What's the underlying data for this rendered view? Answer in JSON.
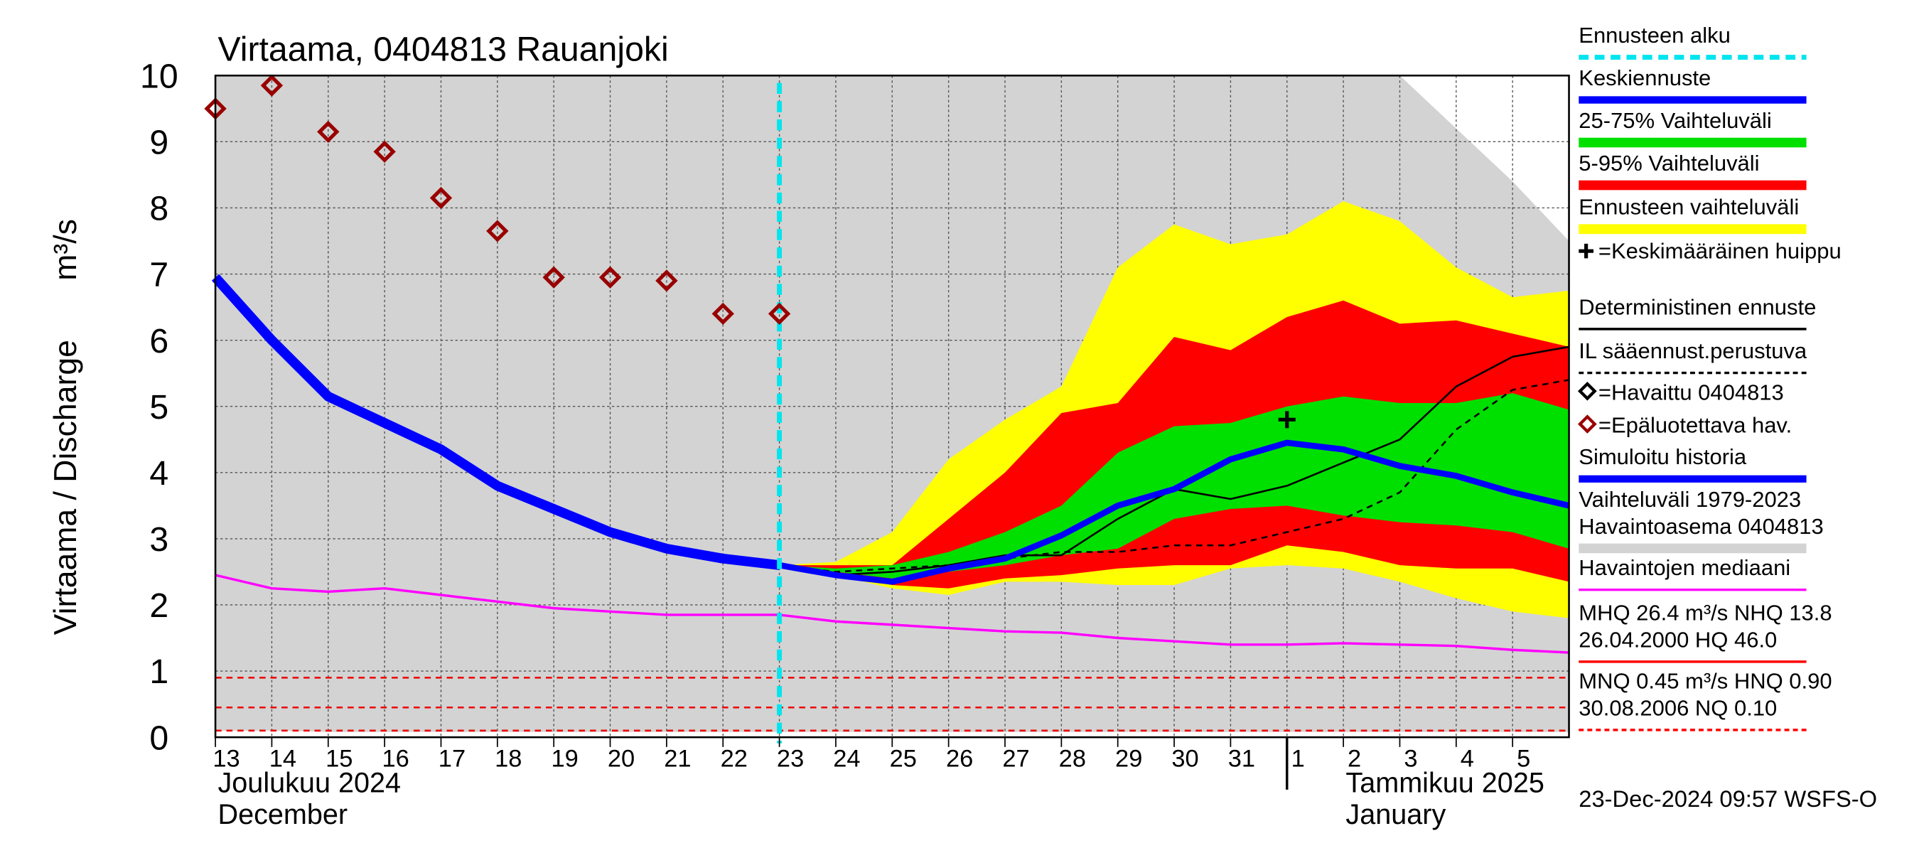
{
  "chart_data": {
    "type": "line",
    "title": "Virtaama, 0404813 Rauanjoki",
    "y_label": "Virtaama / Discharge",
    "y_unit": "m³/s",
    "x": [
      "2024-12-13",
      "2024-12-14",
      "2024-12-15",
      "2024-12-16",
      "2024-12-17",
      "2024-12-18",
      "2024-12-19",
      "2024-12-20",
      "2024-12-21",
      "2024-12-22",
      "2024-12-23",
      "2024-12-24",
      "2024-12-25",
      "2024-12-26",
      "2024-12-27",
      "2024-12-28",
      "2024-12-29",
      "2024-12-30",
      "2024-12-31",
      "2025-01-01",
      "2025-01-02",
      "2025-01-03",
      "2025-01-04",
      "2025-01-05",
      "2025-01-06"
    ],
    "xlim": [
      "2024-12-13",
      "2025-01-06"
    ],
    "xticks": [
      {
        "value": "2024-12-13",
        "label": "13"
      },
      {
        "value": "2024-12-14",
        "label": "14"
      },
      {
        "value": "2024-12-15",
        "label": "15"
      },
      {
        "value": "2024-12-16",
        "label": "16"
      },
      {
        "value": "2024-12-17",
        "label": "17"
      },
      {
        "value": "2024-12-18",
        "label": "18"
      },
      {
        "value": "2024-12-19",
        "label": "19"
      },
      {
        "value": "2024-12-20",
        "label": "20"
      },
      {
        "value": "2024-12-21",
        "label": "21"
      },
      {
        "value": "2024-12-22",
        "label": "22"
      },
      {
        "value": "2024-12-23",
        "label": "23"
      },
      {
        "value": "2024-12-24",
        "label": "24"
      },
      {
        "value": "2024-12-25",
        "label": "25"
      },
      {
        "value": "2024-12-26",
        "label": "26"
      },
      {
        "value": "2024-12-27",
        "label": "27"
      },
      {
        "value": "2024-12-28",
        "label": "28"
      },
      {
        "value": "2024-12-29",
        "label": "29"
      },
      {
        "value": "2024-12-30",
        "label": "30"
      },
      {
        "value": "2024-12-31",
        "label": "31"
      },
      {
        "value": "2025-01-01",
        "label": "1"
      },
      {
        "value": "2025-01-02",
        "label": "2"
      },
      {
        "value": "2025-01-03",
        "label": "3"
      },
      {
        "value": "2025-01-04",
        "label": "4"
      },
      {
        "value": "2025-01-05",
        "label": "5"
      }
    ],
    "month_labels": [
      {
        "date": "2024-12-13",
        "fi": "Joulukuu  2024",
        "en": "December"
      },
      {
        "date": "2025-01-01",
        "fi": "Tammikuu  2025",
        "en": "January"
      }
    ],
    "ylim": [
      0,
      10
    ],
    "yticks": [
      0,
      1,
      2,
      3,
      4,
      5,
      6,
      7,
      8,
      9,
      10
    ],
    "grid": true,
    "forecast_start": "2024-12-23",
    "bands": [
      {
        "color": "#d3d3d3",
        "upper": [
          10,
          10,
          10,
          10,
          10,
          10,
          10,
          10,
          10,
          10,
          10,
          10,
          10,
          10,
          10,
          10,
          10,
          10,
          10,
          10,
          10,
          10,
          9.2,
          8.4,
          7.5
        ],
        "lower": [
          0.1,
          0.1,
          0.08,
          0.08,
          0.08,
          0.08,
          0.08,
          0.08,
          0.08,
          0.08,
          0.08,
          0.08,
          0.08,
          0.08,
          0.08,
          0.08,
          0.08,
          0.08,
          0.08,
          0.08,
          0.08,
          0.08,
          0.08,
          0.08,
          0.08
        ]
      },
      {
        "color": "#ffff00",
        "upper": [
          null,
          null,
          null,
          null,
          null,
          null,
          null,
          null,
          null,
          null,
          2.6,
          2.65,
          3.1,
          4.2,
          4.8,
          5.3,
          7.1,
          7.75,
          7.45,
          7.6,
          8.1,
          7.8,
          7.1,
          6.65,
          6.75
        ],
        "lower": [
          null,
          null,
          null,
          null,
          null,
          null,
          null,
          null,
          null,
          null,
          2.6,
          2.45,
          2.25,
          2.15,
          2.35,
          2.35,
          2.3,
          2.3,
          2.55,
          2.6,
          2.55,
          2.35,
          2.1,
          1.9,
          1.8
        ]
      },
      {
        "color": "#ff0000",
        "upper": [
          null,
          null,
          null,
          null,
          null,
          null,
          null,
          null,
          null,
          null,
          2.6,
          2.6,
          2.6,
          3.3,
          4.0,
          4.9,
          5.05,
          6.05,
          5.85,
          6.35,
          6.6,
          6.25,
          6.3,
          6.1,
          5.9
        ],
        "lower": [
          null,
          null,
          null,
          null,
          null,
          null,
          null,
          null,
          null,
          null,
          2.6,
          2.45,
          2.3,
          2.25,
          2.4,
          2.45,
          2.55,
          2.6,
          2.6,
          2.9,
          2.8,
          2.6,
          2.55,
          2.55,
          2.35
        ]
      },
      {
        "color": "#00e000",
        "upper": [
          null,
          null,
          null,
          null,
          null,
          null,
          null,
          null,
          null,
          null,
          2.6,
          2.55,
          2.6,
          2.8,
          3.1,
          3.5,
          4.3,
          4.7,
          4.75,
          5.0,
          5.15,
          5.05,
          5.05,
          5.2,
          4.95
        ],
        "lower": [
          null,
          null,
          null,
          null,
          null,
          null,
          null,
          null,
          null,
          null,
          2.6,
          2.5,
          2.4,
          2.5,
          2.6,
          2.75,
          2.85,
          3.3,
          3.45,
          3.5,
          3.35,
          3.25,
          3.2,
          3.1,
          2.85
        ]
      }
    ],
    "series": [
      {
        "color": "#ff00ff",
        "width": 2,
        "dash": false,
        "values": [
          2.45,
          2.25,
          2.2,
          2.25,
          2.15,
          2.05,
          1.95,
          1.9,
          1.85,
          1.85,
          1.85,
          1.75,
          1.7,
          1.65,
          1.6,
          1.58,
          1.5,
          1.45,
          1.4,
          1.4,
          1.42,
          1.4,
          1.38,
          1.32,
          1.28
        ]
      },
      {
        "color": "#0000ff",
        "width": 8,
        "dash": false,
        "values": [
          6.95,
          6.0,
          5.15,
          4.75,
          4.35,
          3.8,
          3.45,
          3.1,
          2.85,
          2.7,
          2.6,
          null,
          null,
          null,
          null,
          null,
          null,
          null,
          null,
          null,
          null,
          null,
          null,
          null,
          null
        ]
      },
      {
        "color": "#000000",
        "width": 1.5,
        "dash": true,
        "values": [
          null,
          null,
          null,
          null,
          null,
          null,
          null,
          null,
          null,
          null,
          2.6,
          2.5,
          2.55,
          2.6,
          2.7,
          2.8,
          2.8,
          2.9,
          2.9,
          3.1,
          3.3,
          3.7,
          4.65,
          5.25,
          5.4
        ]
      },
      {
        "color": "#000000",
        "width": 1.5,
        "dash": false,
        "values": [
          null,
          null,
          null,
          null,
          null,
          null,
          null,
          null,
          null,
          null,
          2.6,
          2.45,
          2.5,
          2.6,
          2.75,
          2.75,
          3.3,
          3.75,
          3.6,
          3.8,
          4.15,
          4.5,
          5.3,
          5.75,
          5.9
        ]
      },
      {
        "color": "#0000ff",
        "width": 5,
        "dash": false,
        "values": [
          null,
          null,
          null,
          null,
          null,
          null,
          null,
          null,
          null,
          null,
          2.6,
          2.45,
          2.35,
          2.55,
          2.7,
          3.05,
          3.5,
          3.75,
          4.2,
          4.45,
          4.35,
          4.1,
          3.95,
          3.7,
          3.5
        ]
      }
    ],
    "unreliable_observations": {
      "color": "#990000",
      "values": [
        9.5,
        9.85,
        9.15,
        8.85,
        8.15,
        7.65,
        6.95,
        6.95,
        6.9,
        6.4,
        6.4,
        null,
        null,
        null,
        null,
        null,
        null,
        null,
        null,
        null,
        null,
        null,
        null,
        null,
        null
      ]
    },
    "mean_peak": {
      "x": "2025-01-01",
      "value": 4.8
    },
    "reference_lines": [
      0.9,
      0.45,
      0.1
    ],
    "legend": [
      {
        "label": [
          "Ennusteen alku"
        ],
        "color": "#00e5ee",
        "style": "dashed"
      },
      {
        "label": [
          "Keskiennuste"
        ],
        "color": "#0000ff",
        "style": "line"
      },
      {
        "label": [
          "25-75% Vaihteluväli"
        ],
        "color": "#00e000",
        "style": "band"
      },
      {
        "label": [
          "5-95% Vaihteluväli"
        ],
        "color": "#ff0000",
        "style": "band"
      },
      {
        "label": [
          "Ennusteen vaihteluväli"
        ],
        "color": "#ffff00",
        "style": "band"
      },
      {
        "label": [
          "=Keskimääräinen huippu"
        ],
        "color": "#000000",
        "style": "plus"
      },
      {
        "label": [
          "Deterministinen ennuste"
        ],
        "color": "#000000",
        "style": "thin"
      },
      {
        "label": [
          "IL sääennust.perustuva"
        ],
        "color": "#000000",
        "style": "thindash"
      },
      {
        "label": [
          "=Havaittu 0404813"
        ],
        "color": "#000000",
        "style": "diamond"
      },
      {
        "label": [
          "=Epäluotettava hav."
        ],
        "color": "#990000",
        "style": "diamond"
      },
      {
        "label": [
          "Simuloitu historia"
        ],
        "color": "#0000ff",
        "style": "line"
      },
      {
        "label": [
          "Vaihteluväli 1979-2023",
          " Havaintoasema 0404813"
        ],
        "color": "#d3d3d3",
        "style": "band"
      },
      {
        "label": [
          "Havaintojen mediaani"
        ],
        "color": "#ff00ff",
        "style": "thin"
      },
      {
        "label": [
          "MHQ 26.4 m³/s NHQ 13.8",
          "26.04.2000 HQ 46.0"
        ],
        "color": "#ff0000",
        "style": "thin"
      },
      {
        "label": [
          "MNQ 0.45 m³/s HNQ 0.90",
          "30.08.2006 NQ 0.10"
        ],
        "color": "#ff0000",
        "style": "thindash"
      }
    ],
    "footer": "23-Dec-2024 09:57 WSFS-O"
  }
}
